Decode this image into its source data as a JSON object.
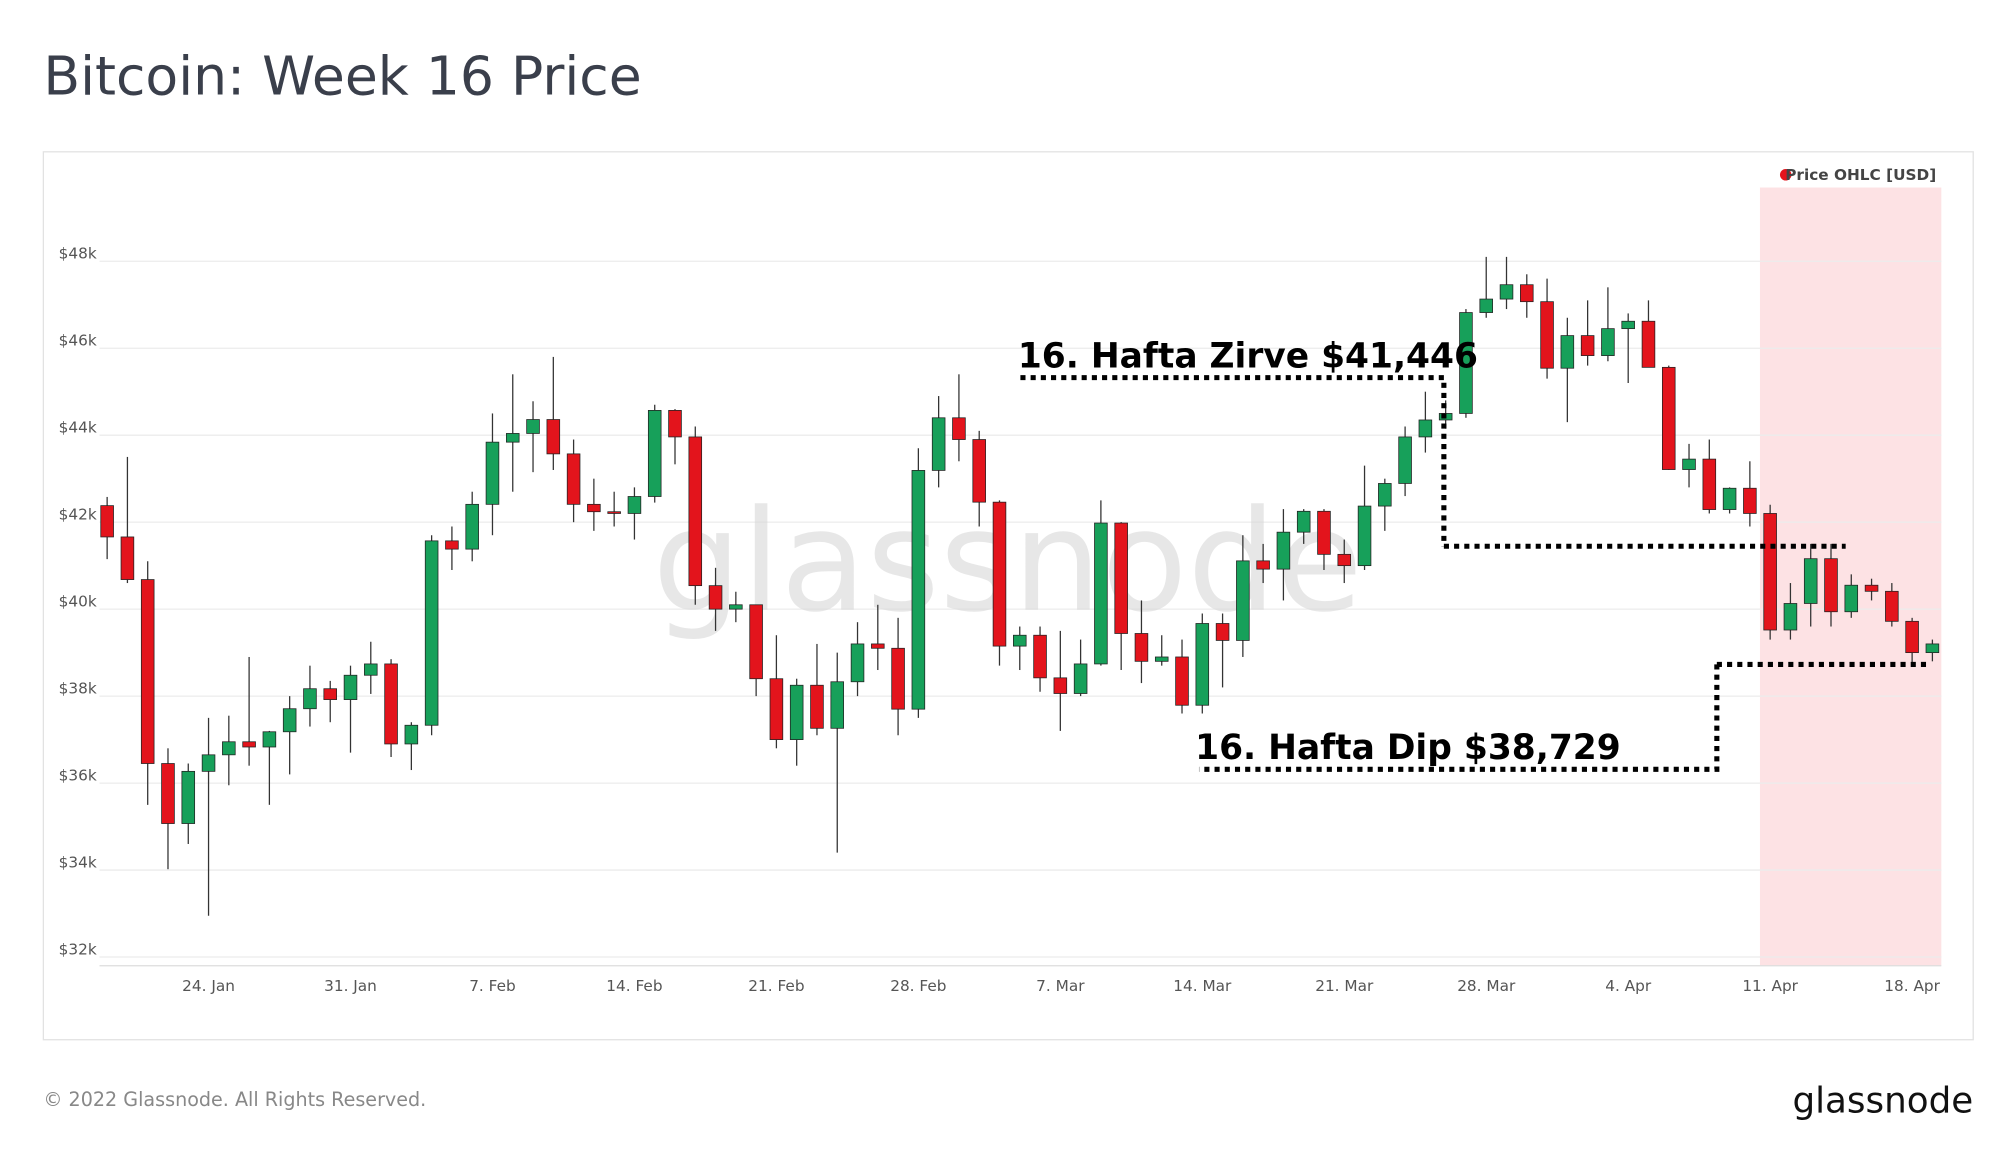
{
  "chart_data": {
    "type": "candlestick",
    "title": "Bitcoin: Week 16 Price",
    "legend": "Price OHLC [USD]",
    "watermark": "glassnode",
    "footer": "© 2022 Glassnode. All Rights Reserved.",
    "logo": "glassnode",
    "up_color": "#17a05a",
    "down_color": "#e3141c",
    "highlight_color": "#fde2e4",
    "ylim": [
      31800,
      49900
    ],
    "yticks": [
      {
        "value": 32000,
        "label": "$32k"
      },
      {
        "value": 34000,
        "label": "$34k"
      },
      {
        "value": 36000,
        "label": "$36k"
      },
      {
        "value": 38000,
        "label": "$38k"
      },
      {
        "value": 40000,
        "label": "$40k"
      },
      {
        "value": 42000,
        "label": "$42k"
      },
      {
        "value": 44000,
        "label": "$44k"
      },
      {
        "value": 46000,
        "label": "$46k"
      },
      {
        "value": 48000,
        "label": "$48k"
      }
    ],
    "grid": true,
    "categories": [
      null,
      null,
      null,
      null,
      null,
      "24. Jan",
      null,
      null,
      null,
      null,
      null,
      null,
      "31. Jan",
      null,
      null,
      null,
      null,
      null,
      null,
      "7. Feb",
      null,
      null,
      null,
      null,
      null,
      null,
      "14. Feb",
      null,
      null,
      null,
      null,
      null,
      null,
      "21. Feb",
      null,
      null,
      null,
      null,
      null,
      null,
      "28. Feb",
      null,
      null,
      null,
      null,
      null,
      null,
      "7. Mar",
      null,
      null,
      null,
      null,
      null,
      null,
      "14. Mar",
      null,
      null,
      null,
      null,
      null,
      null,
      "21. Mar",
      null,
      null,
      null,
      null,
      null,
      null,
      "28. Mar",
      null,
      null,
      null,
      null,
      null,
      null,
      "4. Apr",
      null,
      null,
      null,
      null,
      null,
      null,
      "11. Apr",
      null,
      null,
      null,
      null,
      null,
      null,
      "18. Apr",
      null
    ],
    "open": [
      42380,
      41660,
      40680,
      36450,
      35070,
      36270,
      36650,
      36950,
      36830,
      37180,
      37710,
      38170,
      37920,
      38480,
      38740,
      36900,
      37330,
      41570,
      41380,
      42410,
      43840,
      44040,
      44360,
      43570,
      42410,
      42240,
      42200,
      42590,
      44570,
      43960,
      40540,
      40000,
      40100,
      38400,
      37000,
      38250,
      37260,
      38330,
      39200,
      39100,
      37700,
      43190,
      44400,
      43900,
      42460,
      39150,
      39400,
      38420,
      38060,
      38740,
      41980,
      39440,
      38800,
      38900,
      37790,
      39670,
      39280,
      41110,
      40920,
      41770,
      42250,
      41260,
      41000,
      42370,
      42890,
      43960,
      44350,
      44500,
      46820,
      47130,
      47460,
      47070,
      45540,
      46290,
      45830,
      46450,
      46620,
      45560,
      43210,
      43450,
      42290,
      42780,
      42200,
      39520,
      40130,
      41160,
      39940,
      40550,
      40410,
      39720,
      39000
    ],
    "high": [
      42580,
      43500,
      41100,
      36800,
      36450,
      37500,
      37550,
      38900,
      37200,
      38000,
      38700,
      38350,
      38700,
      39250,
      38850,
      37400,
      41700,
      41900,
      42700,
      44500,
      45400,
      44780,
      45800,
      43900,
      43000,
      42700,
      42800,
      44700,
      44600,
      44200,
      40950,
      40400,
      40100,
      39400,
      38400,
      39200,
      39000,
      39700,
      40100,
      39800,
      43700,
      44900,
      45400,
      44100,
      42500,
      39600,
      39600,
      39500,
      39300,
      42500,
      42000,
      40200,
      39400,
      39300,
      39900,
      39900,
      41700,
      41500,
      42300,
      42300,
      42300,
      41600,
      43300,
      43000,
      44200,
      45000,
      44800,
      46900,
      48100,
      48100,
      47700,
      47600,
      46700,
      47100,
      47400,
      46800,
      47100,
      45600,
      43800,
      43900,
      42800,
      43400,
      42400,
      40600,
      41500,
      41500,
      40800,
      40700,
      40600,
      39800,
      39300
    ],
    "low": [
      41150,
      40600,
      35500,
      34020,
      34600,
      32950,
      35950,
      36400,
      35500,
      36200,
      37300,
      37400,
      36700,
      38050,
      36600,
      36300,
      37100,
      40900,
      41100,
      41700,
      42700,
      43150,
      43200,
      42000,
      41800,
      41900,
      41600,
      42450,
      43330,
      40100,
      39500,
      39700,
      38000,
      36800,
      36400,
      37100,
      34400,
      38000,
      38600,
      37100,
      37500,
      42800,
      43400,
      41900,
      38700,
      38600,
      38100,
      37200,
      38000,
      38700,
      38600,
      38300,
      38700,
      37600,
      37600,
      38200,
      38900,
      40600,
      40200,
      41500,
      40900,
      40600,
      40900,
      41800,
      42600,
      43600,
      44150,
      44400,
      46700,
      46900,
      46700,
      45300,
      44300,
      45600,
      45700,
      45200,
      45600,
      43200,
      42800,
      42200,
      42200,
      41900,
      39300,
      39300,
      39600,
      39600,
      39800,
      40200,
      39600,
      38700,
      38800
    ],
    "close": [
      41660,
      40680,
      36450,
      35070,
      36270,
      36650,
      36950,
      36830,
      37180,
      37710,
      38170,
      37920,
      38480,
      38740,
      36900,
      37330,
      41570,
      41380,
      42410,
      43840,
      44040,
      44360,
      43570,
      42410,
      42240,
      42200,
      42590,
      44570,
      43960,
      40540,
      40000,
      40100,
      38400,
      37000,
      38250,
      37260,
      38330,
      39200,
      39100,
      37700,
      43190,
      44400,
      43900,
      42460,
      39150,
      39400,
      38420,
      38060,
      38740,
      41980,
      39440,
      38800,
      38900,
      37790,
      39670,
      39280,
      41110,
      40920,
      41770,
      42250,
      41260,
      41000,
      42370,
      42890,
      43960,
      44350,
      44500,
      46820,
      47130,
      47460,
      47070,
      45540,
      46290,
      45830,
      46450,
      46620,
      45560,
      43210,
      43450,
      42290,
      42780,
      42200,
      39520,
      40130,
      41160,
      39940,
      40550,
      40410,
      39720,
      39000,
      39200
    ],
    "annotations": [
      {
        "label": "16. Hafta Zirve $41,446",
        "value": 41446
      },
      {
        "label": "16. Hafta Dip $38,729",
        "value": 38729
      }
    ]
  }
}
